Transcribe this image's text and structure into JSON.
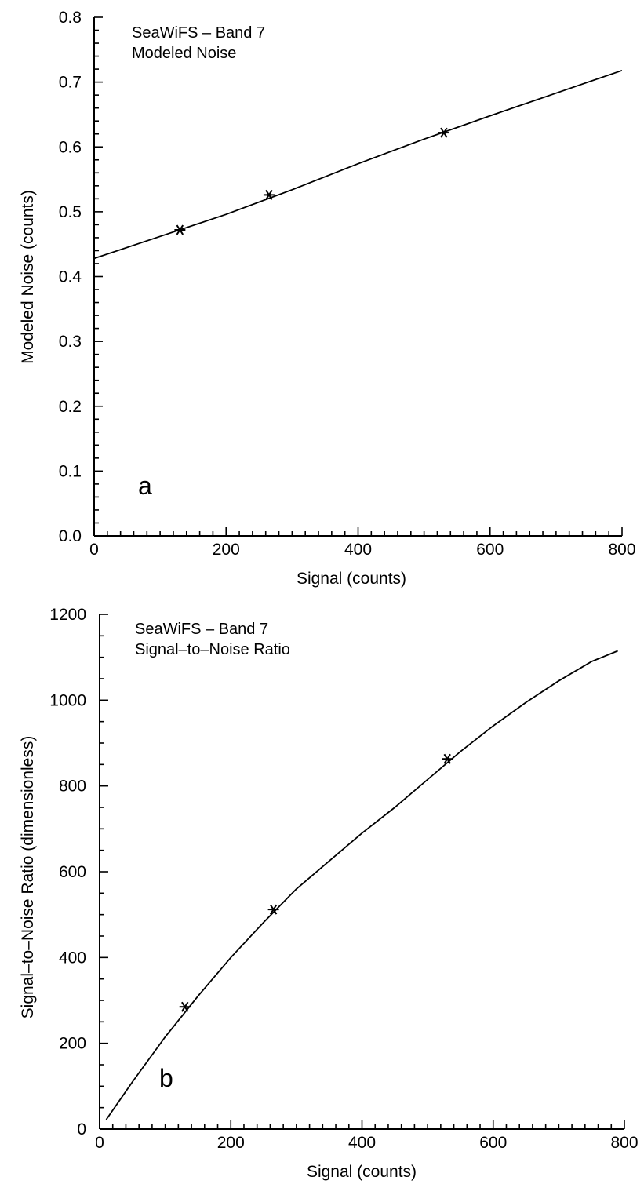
{
  "chart_data": [
    {
      "type": "line",
      "title_lines": [
        "SeaWiFS  –  Band 7",
        "Modeled Noise"
      ],
      "panel_label": "a",
      "xlabel": "Signal  (counts)",
      "ylabel": "Modeled Noise  (counts)",
      "xlim": [
        0,
        800
      ],
      "ylim": [
        0,
        0.8
      ],
      "x_ticks": [
        0,
        200,
        400,
        600,
        800
      ],
      "x_tick_labels": [
        "0",
        "200",
        "400",
        "600",
        "800"
      ],
      "y_ticks": [
        0,
        0.1,
        0.2,
        0.3,
        0.4,
        0.5,
        0.6,
        0.7,
        0.8
      ],
      "y_tick_labels": [
        "0.0",
        "0.1",
        "0.2",
        "0.3",
        "0.4",
        "0.5",
        "0.6",
        "0.7",
        "0.8"
      ],
      "grid": false,
      "series": [
        {
          "style": "solid",
          "x": [
            0,
            100,
            200,
            300,
            400,
            500,
            600,
            700,
            800
          ],
          "y": [
            0.428,
            0.462,
            0.496,
            0.534,
            0.574,
            0.612,
            0.648,
            0.683,
            0.718
          ]
        },
        {
          "style": "asterisk-markers",
          "x": [
            130,
            265,
            530
          ],
          "y": [
            0.472,
            0.526,
            0.622
          ]
        }
      ]
    },
    {
      "type": "line",
      "title_lines": [
        "SeaWiFS  –  Band  7",
        "Signal–to–Noise  Ratio"
      ],
      "panel_label": "b",
      "xlabel": "Signal  (counts)",
      "ylabel": "Signal–to–Noise  Ratio  (dimensionless)",
      "xlim": [
        0,
        800
      ],
      "ylim": [
        0,
        1200
      ],
      "x_ticks": [
        0,
        200,
        400,
        600,
        800
      ],
      "x_tick_labels": [
        "0",
        "200",
        "400",
        "600",
        "800"
      ],
      "y_ticks": [
        0,
        200,
        400,
        600,
        800,
        1000,
        1200
      ],
      "y_tick_labels": [
        "0",
        "200",
        "400",
        "600",
        "800",
        "1000",
        "1200"
      ],
      "grid": false,
      "series": [
        {
          "style": "solid",
          "x": [
            10,
            50,
            100,
            150,
            200,
            250,
            300,
            350,
            400,
            450,
            500,
            550,
            600,
            650,
            700,
            750,
            790
          ],
          "y": [
            22,
            110,
            215,
            310,
            400,
            482,
            560,
            625,
            690,
            750,
            815,
            880,
            940,
            995,
            1045,
            1090,
            1115
          ]
        },
        {
          "style": "asterisk-markers",
          "x": [
            130,
            265,
            530
          ],
          "y": [
            285,
            512,
            863
          ]
        }
      ]
    }
  ]
}
